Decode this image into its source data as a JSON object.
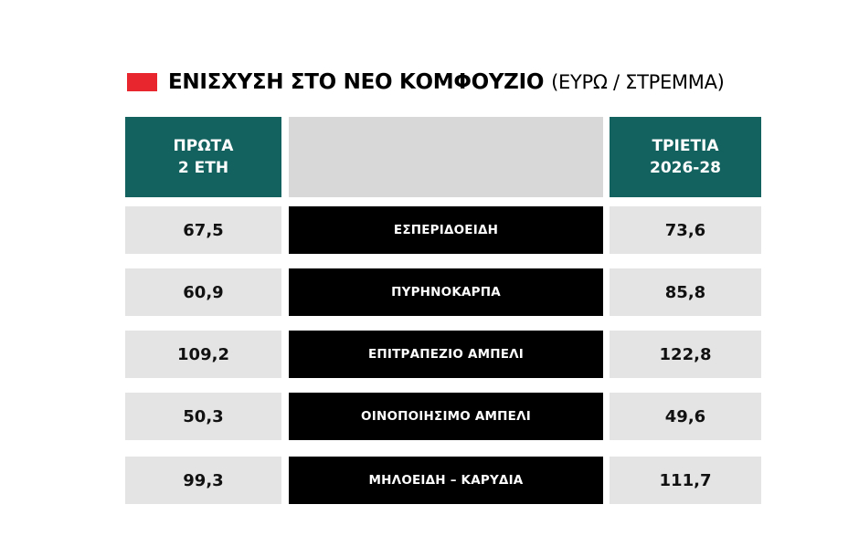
{
  "title": {
    "main": "ΕΝΙΣΧΥΣΗ ΣΤΟ ΝΕΟ ΚΟΜΦΟΥΖΙΟ",
    "unit": "(ΕΥΡΩ / ΣΤΡΕΜΜΑ)"
  },
  "colors": {
    "marker": "#e8262e",
    "header_teal": "#13625f",
    "header_middle": "#d8d8d8",
    "value_cell": "#e4e4e4",
    "label_cell": "#000000"
  },
  "chart_data": {
    "type": "table",
    "columns": [
      "ΠΡΩΤΑ 2 ΕΤΗ",
      "",
      "ΤΡΙΕΤΙΑ 2026-28"
    ],
    "header": {
      "left_line1": "ΠΡΩΤΑ",
      "left_line2": "2 ΕΤΗ",
      "right_line1": "ΤΡΙΕΤΙΑ",
      "right_line2": "2026-28"
    },
    "rows": [
      {
        "label": "ΕΣΠΕΡΙΔΟΕΙΔΗ",
        "first_2_years": "67,5",
        "triennium_2026_28": "73,6"
      },
      {
        "label": "ΠΥΡΗΝΟΚΑΡΠΑ",
        "first_2_years": "60,9",
        "triennium_2026_28": "85,8"
      },
      {
        "label": "ΕΠΙΤΡΑΠΕΖΙΟ ΑΜΠΕΛΙ",
        "first_2_years": "109,2",
        "triennium_2026_28": "122,8"
      },
      {
        "label": "ΟΙΝΟΠΟΙΗΣΙΜΟ ΑΜΠΕΛΙ",
        "first_2_years": "50,3",
        "triennium_2026_28": "49,6"
      },
      {
        "label": "ΜΗΛΟΕΙΔΗ – ΚΑΡΥΔΙΑ",
        "first_2_years": "99,3",
        "triennium_2026_28": "111,7"
      }
    ]
  }
}
